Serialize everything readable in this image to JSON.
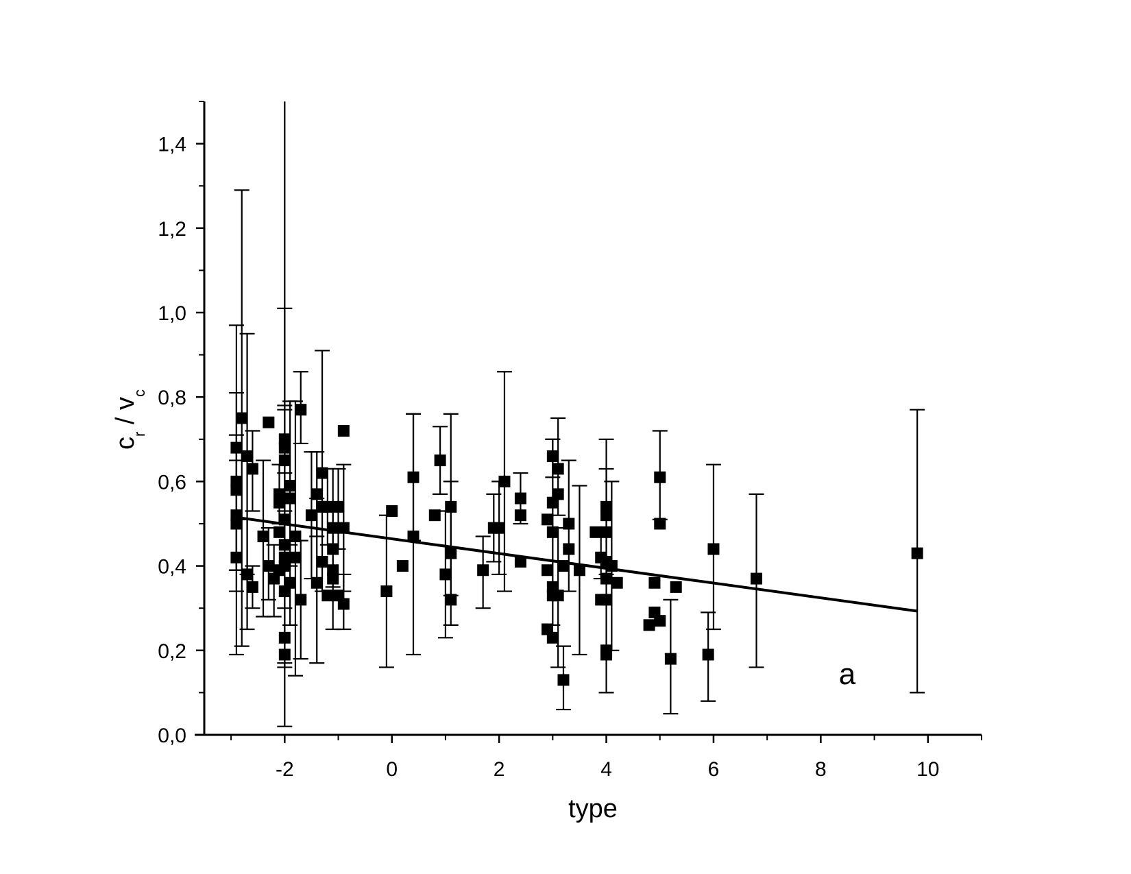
{
  "chart_data": {
    "type": "scatter",
    "xlabel": "type",
    "ylabel": {
      "main": "c",
      "sub1": "r",
      "mid": " / v",
      "sub2": "c"
    },
    "panel_label": "a",
    "xlim": [
      -3.5,
      11
    ],
    "ylim": [
      0,
      1.5
    ],
    "xticks": [
      -2,
      0,
      2,
      4,
      6,
      8,
      10
    ],
    "xtick_labels": [
      "-2",
      "0",
      "2",
      "4",
      "6",
      "8",
      "10"
    ],
    "yticks": [
      0,
      0.2,
      0.4,
      0.6,
      0.8,
      1.0,
      1.2,
      1.4
    ],
    "ytick_labels": [
      "0,0",
      "0,2",
      "0,4",
      "0,6",
      "0,8",
      "1,0",
      "1,2",
      "1,4"
    ],
    "grid": false,
    "fit_line": {
      "x": [
        -2.9,
        9.8
      ],
      "y": [
        0.515,
        0.293
      ]
    },
    "points": [
      {
        "x": -2.9,
        "y": 0.68,
        "lo": 0.39,
        "hi": 0.97
      },
      {
        "x": -2.9,
        "y": 0.6,
        "lo": 0.39,
        "hi": 0.81
      },
      {
        "x": -2.9,
        "y": 0.58
      },
      {
        "x": -2.9,
        "y": 0.52,
        "lo": 0.34,
        "hi": 0.71
      },
      {
        "x": -2.9,
        "y": 0.5
      },
      {
        "x": -2.9,
        "y": 0.42,
        "lo": 0.19,
        "hi": 0.65
      },
      {
        "x": -2.8,
        "y": 0.75,
        "lo": 0.21,
        "hi": 1.29
      },
      {
        "x": -2.7,
        "y": 0.66,
        "lo": 0.38,
        "hi": 0.95
      },
      {
        "x": -2.7,
        "y": 0.38,
        "lo": 0.25,
        "hi": 0.51
      },
      {
        "x": -2.6,
        "y": 0.63,
        "lo": 0.53,
        "hi": 0.72
      },
      {
        "x": -2.6,
        "y": 0.35,
        "lo": 0.3,
        "hi": 0.4
      },
      {
        "x": -2.4,
        "y": 0.47,
        "lo": 0.28,
        "hi": 0.65
      },
      {
        "x": -2.3,
        "y": 0.74
      },
      {
        "x": -2.3,
        "y": 0.4,
        "lo": 0.32,
        "hi": 0.49
      },
      {
        "x": -2.2,
        "y": 0.37,
        "lo": 0.28,
        "hi": 0.45
      },
      {
        "x": -2.1,
        "y": 0.57,
        "lo": 0.5,
        "hi": 0.64
      },
      {
        "x": -2.1,
        "y": 0.55
      },
      {
        "x": -2.1,
        "y": 0.48
      },
      {
        "x": -2.1,
        "y": 0.39
      },
      {
        "x": -2.0,
        "y": 0.7,
        "lo": 0.62,
        "hi": 0.78
      },
      {
        "x": -2.0,
        "y": 0.68
      },
      {
        "x": -2.0,
        "y": 0.65,
        "lo": 0.53,
        "hi": 0.77
      },
      {
        "x": -2.0,
        "y": 0.51,
        "lo": 0.02,
        "hi": 1.5
      },
      {
        "x": -2.0,
        "y": 0.45,
        "lo": 0.17,
        "hi": 1.01
      },
      {
        "x": -2.0,
        "y": 0.42
      },
      {
        "x": -2.0,
        "y": 0.4
      },
      {
        "x": -2.0,
        "y": 0.34
      },
      {
        "x": -2.0,
        "y": 0.23,
        "lo": 0.16,
        "hi": 0.3
      },
      {
        "x": -2.0,
        "y": 0.19
      },
      {
        "x": -1.9,
        "y": 0.59,
        "lo": 0.4,
        "hi": 0.79
      },
      {
        "x": -1.9,
        "y": 0.56
      },
      {
        "x": -1.9,
        "y": 0.36,
        "lo": 0.26,
        "hi": 0.45
      },
      {
        "x": -1.8,
        "y": 0.47,
        "lo": 0.14,
        "hi": 0.79
      },
      {
        "x": -1.8,
        "y": 0.42
      },
      {
        "x": -1.7,
        "y": 0.77,
        "lo": 0.69,
        "hi": 0.86
      },
      {
        "x": -1.7,
        "y": 0.32,
        "lo": 0.18,
        "hi": 0.46
      },
      {
        "x": -1.5,
        "y": 0.52,
        "lo": 0.37,
        "hi": 0.67
      },
      {
        "x": -1.4,
        "y": 0.57,
        "lo": 0.47,
        "hi": 0.67
      },
      {
        "x": -1.4,
        "y": 0.36,
        "lo": 0.17,
        "hi": 0.56
      },
      {
        "x": -1.3,
        "y": 0.62,
        "lo": 0.34,
        "hi": 0.91
      },
      {
        "x": -1.3,
        "y": 0.54
      },
      {
        "x": -1.3,
        "y": 0.41
      },
      {
        "x": -1.2,
        "y": 0.54,
        "lo": 0.45,
        "hi": 0.63
      },
      {
        "x": -1.2,
        "y": 0.33
      },
      {
        "x": -1.1,
        "y": 0.49,
        "lo": 0.35,
        "hi": 0.63
      },
      {
        "x": -1.1,
        "y": 0.44
      },
      {
        "x": -1.1,
        "y": 0.39,
        "lo": 0.25,
        "hi": 0.53
      },
      {
        "x": -1.1,
        "y": 0.37
      },
      {
        "x": -1.0,
        "y": 0.54,
        "lo": 0.44,
        "hi": 0.63
      },
      {
        "x": -1.0,
        "y": 0.33
      },
      {
        "x": -0.9,
        "y": 0.72
      },
      {
        "x": -0.9,
        "y": 0.49,
        "lo": 0.34,
        "hi": 0.64
      },
      {
        "x": -0.9,
        "y": 0.31,
        "lo": 0.25,
        "hi": 0.38
      },
      {
        "x": -0.1,
        "y": 0.34,
        "lo": 0.16,
        "hi": 0.52
      },
      {
        "x": 0.0,
        "y": 0.53
      },
      {
        "x": 0.2,
        "y": 0.4
      },
      {
        "x": 0.4,
        "y": 0.61,
        "lo": 0.46,
        "hi": 0.76
      },
      {
        "x": 0.4,
        "y": 0.47,
        "lo": 0.19,
        "hi": 0.76
      },
      {
        "x": 0.8,
        "y": 0.52
      },
      {
        "x": 0.9,
        "y": 0.65,
        "lo": 0.57,
        "hi": 0.73
      },
      {
        "x": 1.0,
        "y": 0.38,
        "lo": 0.23,
        "hi": 0.53
      },
      {
        "x": 1.1,
        "y": 0.54,
        "lo": 0.33,
        "hi": 0.76
      },
      {
        "x": 1.1,
        "y": 0.43,
        "lo": 0.26,
        "hi": 0.6
      },
      {
        "x": 1.1,
        "y": 0.32
      },
      {
        "x": 1.7,
        "y": 0.39,
        "lo": 0.3,
        "hi": 0.47
      },
      {
        "x": 1.9,
        "y": 0.49,
        "lo": 0.41,
        "hi": 0.57
      },
      {
        "x": 2.0,
        "y": 0.49,
        "lo": 0.38,
        "hi": 0.6
      },
      {
        "x": 2.1,
        "y": 0.6,
        "lo": 0.34,
        "hi": 0.86
      },
      {
        "x": 2.4,
        "y": 0.56,
        "lo": 0.5,
        "hi": 0.62
      },
      {
        "x": 2.4,
        "y": 0.52
      },
      {
        "x": 2.4,
        "y": 0.41
      },
      {
        "x": 2.9,
        "y": 0.51
      },
      {
        "x": 2.9,
        "y": 0.39
      },
      {
        "x": 2.9,
        "y": 0.25
      },
      {
        "x": 3.0,
        "y": 0.66,
        "lo": 0.61,
        "hi": 0.7
      },
      {
        "x": 3.0,
        "y": 0.55
      },
      {
        "x": 3.0,
        "y": 0.48,
        "lo": 0.26,
        "hi": 0.7
      },
      {
        "x": 3.0,
        "y": 0.35
      },
      {
        "x": 3.0,
        "y": 0.33
      },
      {
        "x": 3.0,
        "y": 0.23
      },
      {
        "x": 3.1,
        "y": 0.63,
        "lo": 0.52,
        "hi": 0.75
      },
      {
        "x": 3.1,
        "y": 0.57
      },
      {
        "x": 3.1,
        "y": 0.33,
        "lo": 0.16,
        "hi": 0.49
      },
      {
        "x": 3.2,
        "y": 0.4
      },
      {
        "x": 3.2,
        "y": 0.13,
        "lo": 0.06,
        "hi": 0.21
      },
      {
        "x": 3.3,
        "y": 0.5,
        "lo": 0.34,
        "hi": 0.65
      },
      {
        "x": 3.3,
        "y": 0.44
      },
      {
        "x": 3.5,
        "y": 0.39,
        "lo": 0.19,
        "hi": 0.59
      },
      {
        "x": 3.8,
        "y": 0.48
      },
      {
        "x": 3.9,
        "y": 0.42,
        "lo": 0.37,
        "hi": 0.48
      },
      {
        "x": 3.9,
        "y": 0.32
      },
      {
        "x": 4.0,
        "y": 0.54,
        "lo": 0.38,
        "hi": 0.7
      },
      {
        "x": 4.0,
        "y": 0.52
      },
      {
        "x": 4.0,
        "y": 0.48
      },
      {
        "x": 4.0,
        "y": 0.41
      },
      {
        "x": 4.0,
        "y": 0.37,
        "lo": 0.1,
        "hi": 0.63
      },
      {
        "x": 4.0,
        "y": 0.32
      },
      {
        "x": 4.0,
        "y": 0.2
      },
      {
        "x": 4.0,
        "y": 0.19
      },
      {
        "x": 4.1,
        "y": 0.4,
        "lo": 0.2,
        "hi": 0.6
      },
      {
        "x": 4.2,
        "y": 0.36
      },
      {
        "x": 4.8,
        "y": 0.26
      },
      {
        "x": 4.9,
        "y": 0.36
      },
      {
        "x": 4.9,
        "y": 0.29
      },
      {
        "x": 5.0,
        "y": 0.61,
        "lo": 0.51,
        "hi": 0.72
      },
      {
        "x": 5.0,
        "y": 0.5
      },
      {
        "x": 5.0,
        "y": 0.27
      },
      {
        "x": 5.2,
        "y": 0.18,
        "lo": 0.05,
        "hi": 0.32
      },
      {
        "x": 5.3,
        "y": 0.35
      },
      {
        "x": 5.9,
        "y": 0.19,
        "lo": 0.08,
        "hi": 0.29
      },
      {
        "x": 6.0,
        "y": 0.44,
        "lo": 0.25,
        "hi": 0.64
      },
      {
        "x": 6.8,
        "y": 0.37,
        "lo": 0.16,
        "hi": 0.57
      },
      {
        "x": 9.8,
        "y": 0.43,
        "lo": 0.1,
        "hi": 0.77
      }
    ]
  }
}
